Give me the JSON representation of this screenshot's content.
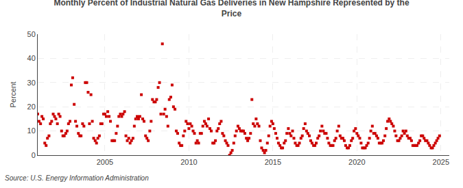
{
  "chart_data": {
    "type": "scatter",
    "title": "Monthly Percent of Industrial Natural Gas Deliveries in New Hampshire Represented by the\nPrice",
    "ylabel": "Percent",
    "annotations": [
      "Source: U.S. Energy Information Administration"
    ],
    "color": "#cc0000",
    "marker": "square",
    "grid": true,
    "xlim": [
      2001.0,
      2025.5
    ],
    "xticks": [
      2005,
      2010,
      2015,
      2020,
      2025
    ],
    "ylim": [
      0,
      50
    ],
    "yticks": [
      0,
      10,
      20,
      30,
      40,
      50
    ],
    "x": [
      2001.0,
      2001.08,
      2001.17,
      2001.25,
      2001.33,
      2001.42,
      2001.5,
      2001.58,
      2001.67,
      2001.75,
      2001.83,
      2001.92,
      2002.0,
      2002.08,
      2002.17,
      2002.25,
      2002.33,
      2002.42,
      2002.5,
      2002.58,
      2002.67,
      2002.75,
      2002.83,
      2002.92,
      2003.0,
      2003.08,
      2003.17,
      2003.25,
      2003.33,
      2003.42,
      2003.5,
      2003.58,
      2003.67,
      2003.75,
      2003.83,
      2003.92,
      2004.0,
      2004.08,
      2004.17,
      2004.25,
      2004.33,
      2004.42,
      2004.5,
      2004.58,
      2004.67,
      2004.75,
      2004.83,
      2004.92,
      2005.0,
      2005.08,
      2005.17,
      2005.25,
      2005.33,
      2005.42,
      2005.5,
      2005.58,
      2005.67,
      2005.75,
      2005.83,
      2005.92,
      2006.0,
      2006.08,
      2006.17,
      2006.25,
      2006.33,
      2006.42,
      2006.5,
      2006.58,
      2006.67,
      2006.75,
      2006.83,
      2006.92,
      2007.0,
      2007.08,
      2007.17,
      2007.25,
      2007.33,
      2007.42,
      2007.5,
      2007.58,
      2007.67,
      2007.75,
      2007.83,
      2007.92,
      2008.0,
      2008.08,
      2008.17,
      2008.25,
      2008.33,
      2008.42,
      2008.5,
      2008.58,
      2008.67,
      2008.75,
      2008.83,
      2008.92,
      2009.0,
      2009.08,
      2009.17,
      2009.25,
      2009.33,
      2009.42,
      2009.5,
      2009.58,
      2009.67,
      2009.75,
      2009.83,
      2009.92,
      2010.0,
      2010.08,
      2010.17,
      2010.25,
      2010.33,
      2010.42,
      2010.5,
      2010.58,
      2010.67,
      2010.75,
      2010.83,
      2010.92,
      2011.0,
      2011.08,
      2011.17,
      2011.25,
      2011.33,
      2011.42,
      2011.5,
      2011.58,
      2011.67,
      2011.75,
      2011.83,
      2011.92,
      2012.0,
      2012.08,
      2012.17,
      2012.25,
      2012.33,
      2012.42,
      2012.5,
      2012.58,
      2012.67,
      2012.75,
      2012.83,
      2012.92,
      2013.0,
      2013.08,
      2013.17,
      2013.25,
      2013.33,
      2013.42,
      2013.5,
      2013.58,
      2013.67,
      2013.75,
      2013.83,
      2013.92,
      2014.0,
      2014.08,
      2014.17,
      2014.25,
      2014.33,
      2014.42,
      2014.5,
      2014.58,
      2014.67,
      2014.75,
      2014.83,
      2014.92,
      2015.0,
      2015.08,
      2015.17,
      2015.25,
      2015.33,
      2015.42,
      2015.5,
      2015.58,
      2015.67,
      2015.75,
      2015.83,
      2015.92,
      2016.0,
      2016.08,
      2016.17,
      2016.25,
      2016.33,
      2016.42,
      2016.5,
      2016.58,
      2016.67,
      2016.75,
      2016.83,
      2016.92,
      2017.0,
      2017.08,
      2017.17,
      2017.25,
      2017.33,
      2017.42,
      2017.5,
      2017.58,
      2017.67,
      2017.75,
      2017.83,
      2017.92,
      2018.0,
      2018.08,
      2018.17,
      2018.25,
      2018.33,
      2018.42,
      2018.5,
      2018.58,
      2018.67,
      2018.75,
      2018.83,
      2018.92,
      2019.0,
      2019.08,
      2019.17,
      2019.25,
      2019.33,
      2019.42,
      2019.5,
      2019.58,
      2019.67,
      2019.75,
      2019.83,
      2019.92,
      2020.0,
      2020.08,
      2020.17,
      2020.25,
      2020.33,
      2020.42,
      2020.5,
      2020.58,
      2020.67,
      2020.75,
      2020.83,
      2020.92,
      2021.0,
      2021.08,
      2021.17,
      2021.25,
      2021.33,
      2021.42,
      2021.5,
      2021.58,
      2021.67,
      2021.75,
      2021.83,
      2021.92,
      2022.0,
      2022.08,
      2022.17,
      2022.25,
      2022.33,
      2022.42,
      2022.5,
      2022.58,
      2022.67,
      2022.75,
      2022.83,
      2022.92,
      2023.0,
      2023.08,
      2023.17,
      2023.25,
      2023.33,
      2023.42,
      2023.5,
      2023.58,
      2023.67,
      2023.75,
      2023.83,
      2023.92,
      2024.0,
      2024.08,
      2024.17,
      2024.25,
      2024.33,
      2024.42,
      2024.5,
      2024.58,
      2024.67,
      2024.75,
      2024.83,
      2024.92
    ],
    "values": [
      17,
      14,
      13,
      16,
      15,
      5,
      4,
      7,
      8,
      13,
      14,
      17,
      16,
      15,
      13,
      17,
      16,
      10,
      8,
      8,
      9,
      10,
      13,
      14,
      29,
      32,
      21,
      14,
      12,
      9,
      8,
      8,
      13,
      12,
      30,
      30,
      26,
      13,
      25,
      14,
      7,
      6,
      5,
      7,
      8,
      13,
      13,
      17,
      17,
      16,
      18,
      16,
      14,
      6,
      6,
      6,
      9,
      12,
      16,
      17,
      16,
      17,
      18,
      8,
      6,
      7,
      5,
      6,
      7,
      12,
      15,
      16,
      15,
      16,
      25,
      15,
      14,
      8,
      7,
      6,
      10,
      14,
      23,
      22,
      22,
      23,
      28,
      30,
      17,
      46,
      17,
      19,
      16,
      12,
      23,
      24,
      29,
      20,
      19,
      10,
      9,
      5,
      4,
      4,
      8,
      10,
      14,
      13,
      11,
      13,
      12,
      10,
      9,
      5,
      6,
      5,
      9,
      9,
      12,
      14,
      13,
      12,
      15,
      11,
      10,
      5,
      5,
      6,
      10,
      11,
      13,
      14,
      9,
      8,
      6,
      5,
      4,
      0,
      1,
      2,
      5,
      8,
      10,
      12,
      11,
      10,
      10,
      10,
      9,
      7,
      6,
      7,
      9,
      23,
      13,
      12,
      15,
      13,
      12,
      6,
      3,
      2,
      1,
      2,
      5,
      8,
      12,
      14,
      13,
      11,
      9,
      7,
      5,
      4,
      3,
      3,
      5,
      6,
      9,
      11,
      9,
      8,
      10,
      7,
      5,
      4,
      4,
      5,
      7,
      8,
      11,
      13,
      10,
      9,
      8,
      6,
      5,
      4,
      4,
      5,
      7,
      8,
      10,
      12,
      10,
      9,
      9,
      7,
      5,
      4,
      4,
      4,
      6,
      7,
      10,
      12,
      8,
      7,
      7,
      6,
      4,
      3,
      3,
      4,
      6,
      7,
      10,
      11,
      9,
      8,
      7,
      5,
      3,
      3,
      3,
      4,
      5,
      7,
      10,
      12,
      9,
      9,
      8,
      7,
      5,
      5,
      5,
      6,
      8,
      11,
      14,
      15,
      14,
      13,
      12,
      10,
      8,
      6,
      6,
      7,
      8,
      10,
      9,
      10,
      8,
      7,
      7,
      6,
      4,
      4,
      4,
      4,
      5,
      6,
      8,
      8,
      7,
      6,
      6,
      5,
      4,
      3,
      3,
      4,
      5,
      6,
      7,
      8
    ]
  }
}
